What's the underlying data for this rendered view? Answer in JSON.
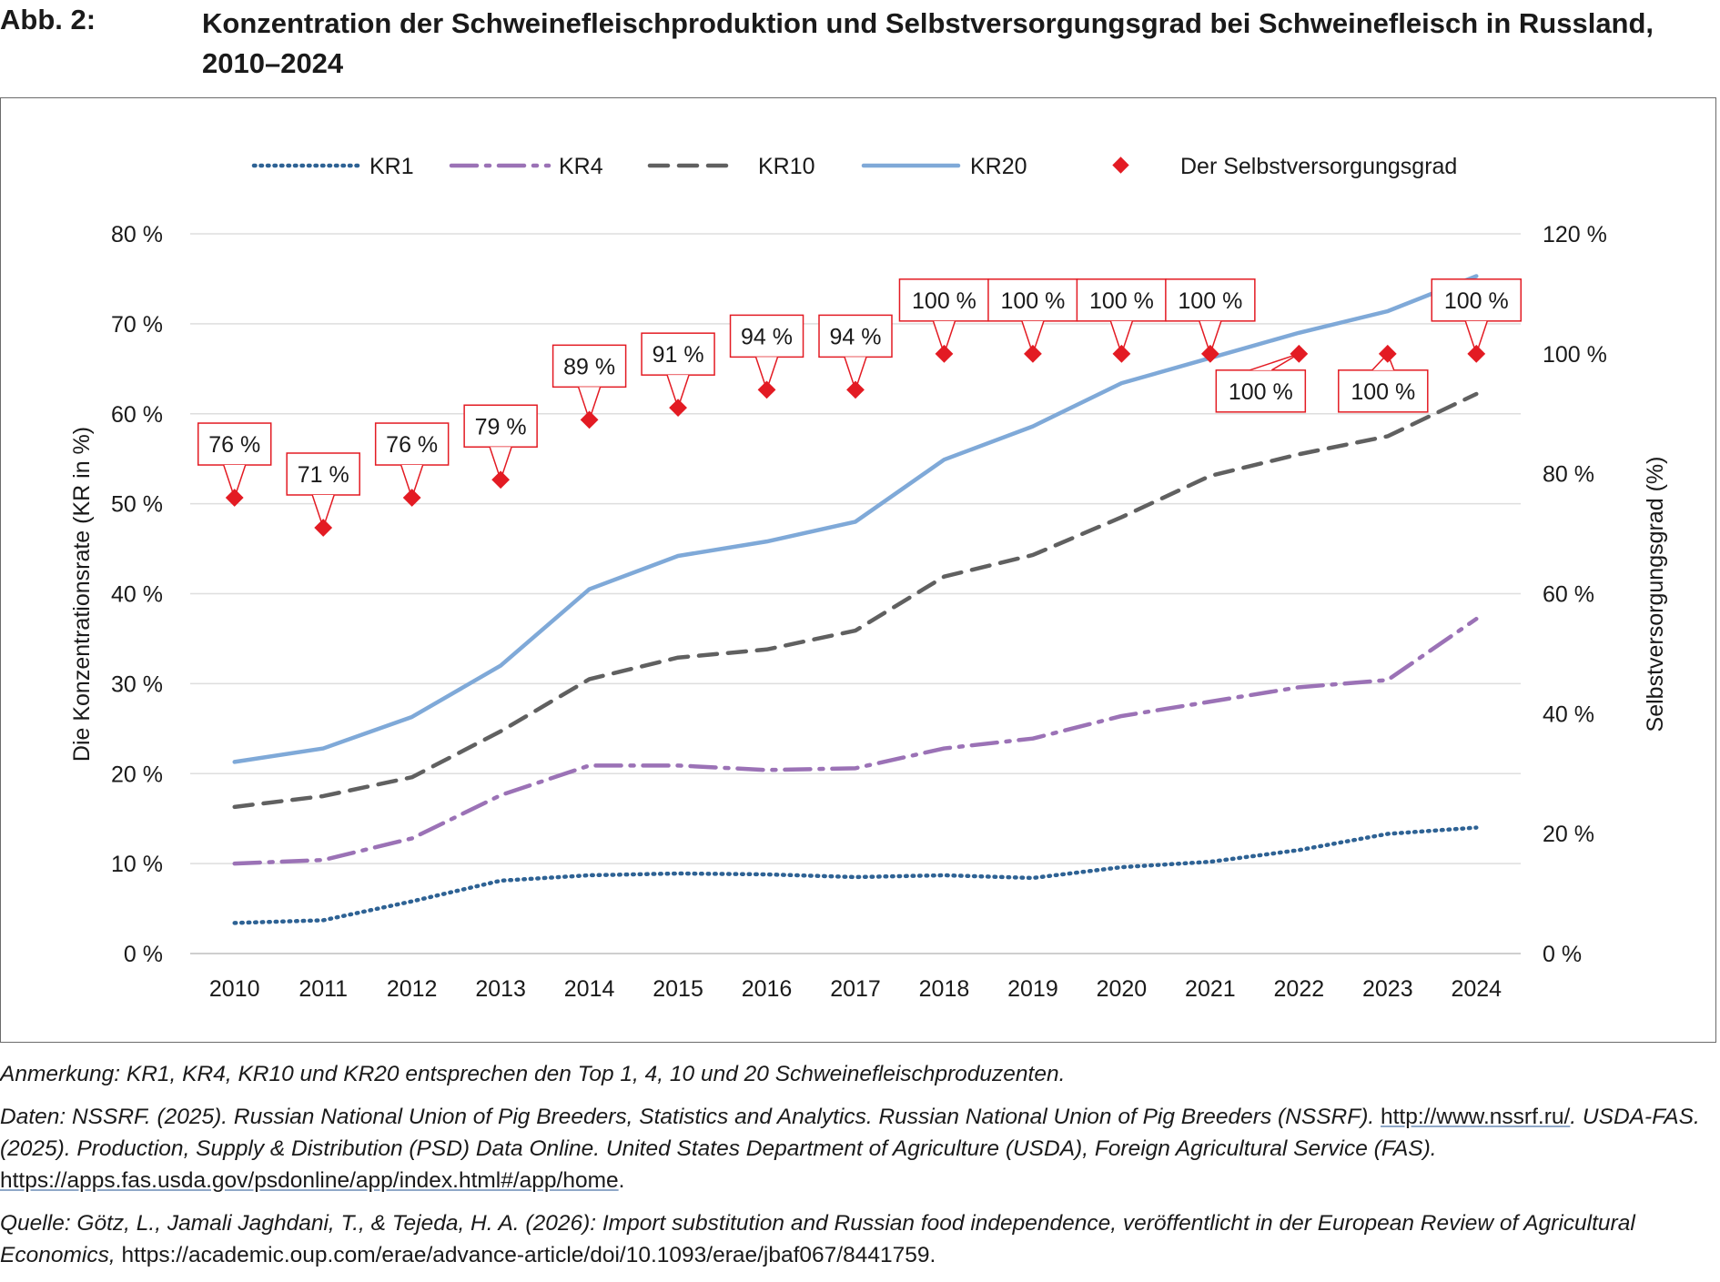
{
  "figure": {
    "label": "Abb. 2:",
    "title": "Konzentration der Schweinefleischproduktion und Selbstversorgungsgrad bei Schweinefleisch in Russland, 2010–2024"
  },
  "chart_data": {
    "type": "line",
    "categories": [
      "2010",
      "2011",
      "2012",
      "2013",
      "2014",
      "2015",
      "2016",
      "2017",
      "2018",
      "2019",
      "2020",
      "2021",
      "2022",
      "2023",
      "2024"
    ],
    "series": [
      {
        "name": "KR1",
        "axis": "left",
        "style": "dotted",
        "color": "#2e6294",
        "values": [
          3.4,
          3.7,
          5.8,
          8.1,
          8.7,
          8.9,
          8.8,
          8.5,
          8.7,
          8.4,
          9.6,
          10.2,
          11.5,
          13.3,
          14.0
        ]
      },
      {
        "name": "KR4",
        "axis": "left",
        "style": "dashdot",
        "color": "#9b72b6",
        "values": [
          10.0,
          10.4,
          12.8,
          17.6,
          20.9,
          20.9,
          20.4,
          20.6,
          22.8,
          23.9,
          26.4,
          28.0,
          29.6,
          30.4,
          37.2
        ]
      },
      {
        "name": "KR10",
        "axis": "left",
        "style": "dashed",
        "color": "#606060",
        "values": [
          16.3,
          17.5,
          19.6,
          24.7,
          30.5,
          32.9,
          33.8,
          35.9,
          41.9,
          44.3,
          48.5,
          53.1,
          55.5,
          57.5,
          62.2
        ]
      },
      {
        "name": "KR20",
        "axis": "left",
        "style": "solid",
        "color": "#7fa9d8",
        "values": [
          21.3,
          22.8,
          26.3,
          32.0,
          40.5,
          44.2,
          45.8,
          48.0,
          54.9,
          58.6,
          63.4,
          66.2,
          69.0,
          71.4,
          75.3
        ]
      },
      {
        "name": "Der Selbstversorgungsgrad",
        "axis": "right",
        "style": "marker",
        "color": "#e31b23",
        "values": [
          76,
          71,
          76,
          79,
          89,
          91,
          94,
          94,
          100,
          100,
          100,
          100,
          100,
          100,
          100
        ],
        "labels": [
          "76 %",
          "71 %",
          "76 %",
          "79 %",
          "89 %",
          "91 %",
          "94 %",
          "94 %",
          "100 %",
          "100 %",
          "100 %",
          "100 %",
          "100 %",
          "100 %",
          "100 %"
        ]
      }
    ],
    "y_left": {
      "label": "Die Konzentrationsrate (KR in %)",
      "min": 0,
      "max": 80,
      "ticks": [
        "0 %",
        "10 %",
        "20 %",
        "30 %",
        "40 %",
        "50 %",
        "60 %",
        "70 %",
        "80 %"
      ]
    },
    "y_right": {
      "label": "Selbstversorgungsgrad (%)",
      "min": 0,
      "max": 120,
      "ticks": [
        "0 %",
        "20 %",
        "40 %",
        "60 %",
        "80 %",
        "100 %",
        "120 %"
      ]
    },
    "grid": true,
    "legend": "top"
  },
  "notes": {
    "anmerkung": "Anmerkung: KR1, KR4, KR10 und KR20 entsprechen den Top 1, 4, 10 und 20 Schweinefleischproduzenten.",
    "daten_1": "Daten: NSSRF. (2025). Russian National Union of Pig Breeders, Statistics and Analytics. Russian National Union of Pig Breeders (NSSRF).",
    "daten_link_1": "http://www.nssrf.ru/",
    "daten_2": ". USDA-FAS. (2025). Production, Supply & Distribution (PSD) Data Online. United States Department of Agriculture (USDA), Foreign Agricultural Service (FAS).",
    "daten_link_2": "https://apps.fas.usda.gov/psdonline/app/index.html#/app/home",
    "daten_end": ".",
    "quelle": "Quelle: Götz, L., Jamali Jaghdani, T., & Tejeda, H. A. (2026): Import substitution and Russian food independence, veröffentlicht in der European Review of Agricultural Economics,",
    "quelle_link": "https://academic.oup.com/erae/advance-article/doi/10.1093/erae/jbaf067/8441759."
  }
}
